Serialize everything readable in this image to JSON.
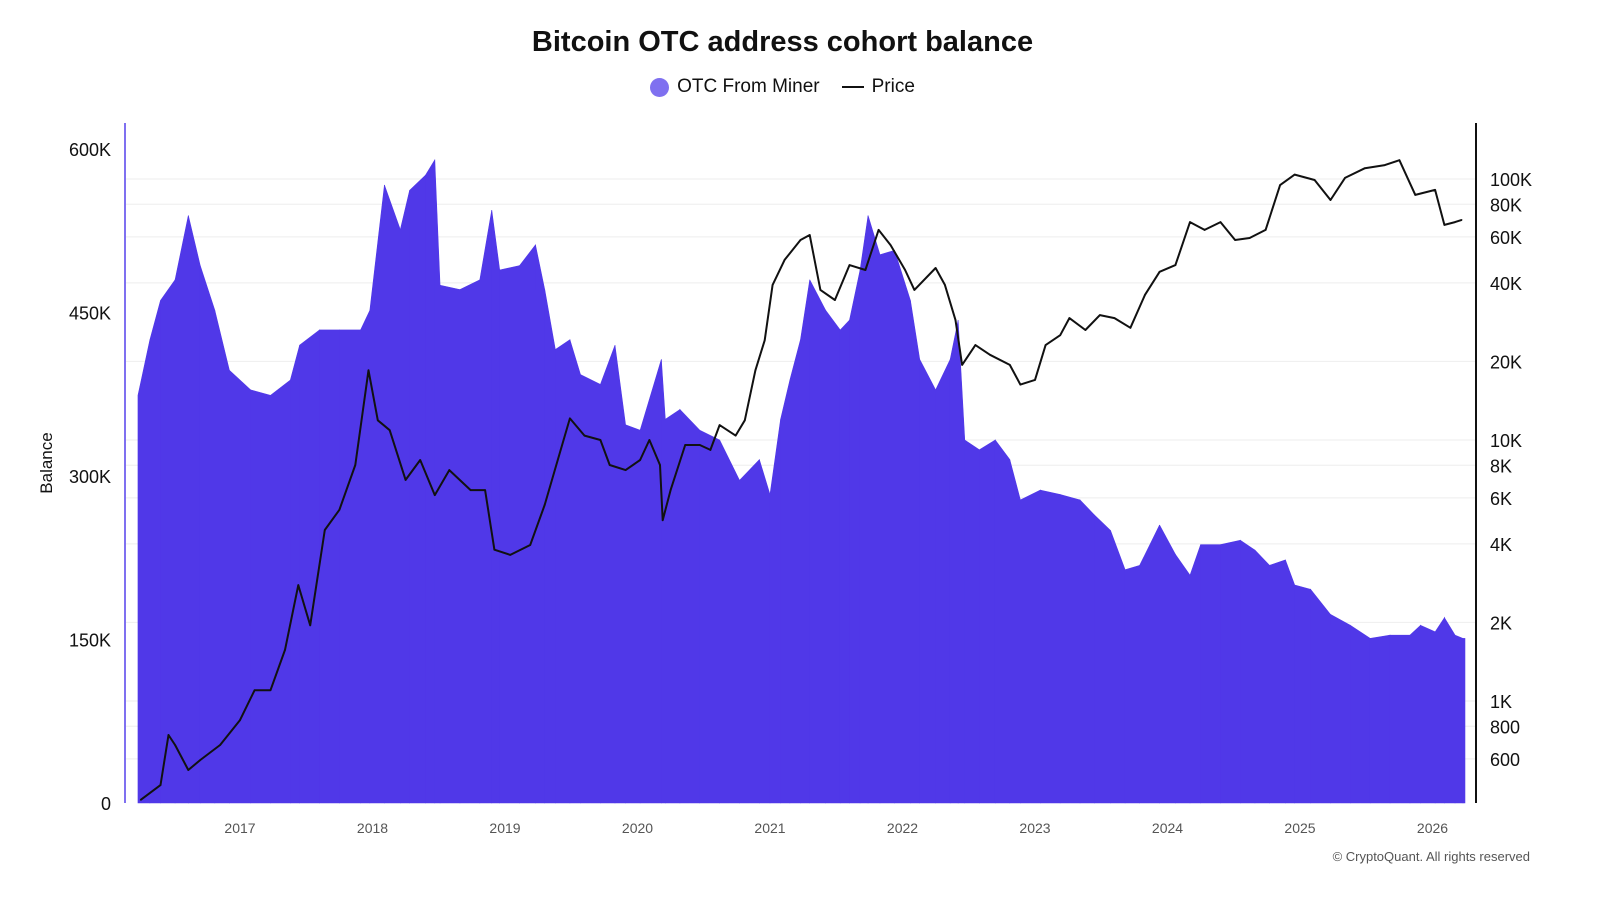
{
  "chart_data": {
    "type": "bar",
    "title": "Bitcoin OTC address cohort balance",
    "ylabel": "Balance",
    "ylabel_right": "",
    "xlabel": "",
    "legend_position": "top",
    "grid": true,
    "x_ticks": [
      "2017",
      "2018",
      "2019",
      "2020",
      "2021",
      "2022",
      "2023",
      "2024",
      "2025",
      "2026"
    ],
    "y_ticks_left": [
      "0",
      "150K",
      "300K",
      "450K",
      "600K"
    ],
    "y_ticks_left_values": [
      0,
      150000,
      300000,
      450000,
      600000
    ],
    "y_ticks_right": [
      "100K",
      "80K",
      "60K",
      "40K",
      "20K",
      "10K",
      "8K",
      "6K",
      "4K",
      "2K",
      "1K",
      "800",
      "600"
    ],
    "y_ticks_right_values": [
      100000,
      80000,
      60000,
      40000,
      20000,
      10000,
      8000,
      6000,
      4000,
      2000,
      1000,
      800,
      600
    ],
    "xlim": [
      2016.1,
      2026.3
    ],
    "ylim_left": [
      0,
      625000
    ],
    "ylim_right_log": [
      400,
      170000
    ],
    "series": [
      {
        "name": "OTC From Miner",
        "type": "bar",
        "axis": "left",
        "color": "#5038e8",
        "x": [
          2016.23,
          2016.32,
          2016.4,
          2016.51,
          2016.61,
          2016.7,
          2016.81,
          2016.92,
          2017.08,
          2017.23,
          2017.38,
          2017.45,
          2017.6,
          2017.75,
          2017.91,
          2017.98,
          2018.09,
          2018.21,
          2018.28,
          2018.4,
          2018.47,
          2018.51,
          2018.66,
          2018.81,
          2018.9,
          2018.96,
          2019.11,
          2019.23,
          2019.3,
          2019.38,
          2019.49,
          2019.57,
          2019.72,
          2019.83,
          2019.91,
          2020.02,
          2020.18,
          2020.21,
          2020.32,
          2020.47,
          2020.62,
          2020.77,
          2020.92,
          2021.0,
          2021.08,
          2021.15,
          2021.23,
          2021.3,
          2021.42,
          2021.53,
          2021.6,
          2021.68,
          2021.74,
          2021.83,
          2021.94,
          2022.06,
          2022.13,
          2022.25,
          2022.36,
          2022.42,
          2022.47,
          2022.58,
          2022.7,
          2022.81,
          2022.89,
          2023.04,
          2023.19,
          2023.34,
          2023.45,
          2023.57,
          2023.68,
          2023.79,
          2023.94,
          2024.06,
          2024.17,
          2024.25,
          2024.4,
          2024.55,
          2024.66,
          2024.77,
          2024.89,
          2024.96,
          2025.08,
          2025.23,
          2025.38,
          2025.53,
          2025.68,
          2025.83,
          2025.91,
          2026.02,
          2026.09,
          2026.17,
          2026.23
        ],
        "values": [
          374000,
          425000,
          461000,
          480000,
          539000,
          493000,
          452000,
          397000,
          379000,
          374000,
          388000,
          420000,
          434000,
          434000,
          434000,
          452000,
          567000,
          526000,
          562000,
          576000,
          590000,
          475000,
          471000,
          480000,
          544000,
          489000,
          493000,
          512000,
          471000,
          416000,
          425000,
          393000,
          384000,
          420000,
          347000,
          342000,
          407000,
          352000,
          361000,
          342000,
          333000,
          296000,
          315000,
          283000,
          352000,
          388000,
          425000,
          480000,
          452000,
          434000,
          443000,
          489000,
          539000,
          503000,
          507000,
          461000,
          407000,
          379000,
          407000,
          443000,
          333000,
          324000,
          333000,
          315000,
          278000,
          287000,
          283000,
          278000,
          264000,
          250000,
          214000,
          218000,
          255000,
          228000,
          209000,
          237000,
          237000,
          241000,
          232000,
          218000,
          223000,
          200000,
          196000,
          173000,
          163000,
          151000,
          154000,
          154000,
          163000,
          157000,
          170000,
          154000,
          151000
        ]
      },
      {
        "name": "Price",
        "type": "line",
        "axis": "right",
        "scale": "log",
        "color": "#111111",
        "x": [
          2016.25,
          2016.4,
          2016.46,
          2016.51,
          2016.61,
          2016.7,
          2016.85,
          2017.0,
          2017.11,
          2017.23,
          2017.34,
          2017.44,
          2017.53,
          2017.64,
          2017.75,
          2017.87,
          2017.97,
          2018.04,
          2018.13,
          2018.25,
          2018.36,
          2018.47,
          2018.58,
          2018.74,
          2018.85,
          2018.92,
          2019.04,
          2019.19,
          2019.3,
          2019.42,
          2019.49,
          2019.6,
          2019.72,
          2019.79,
          2019.91,
          2020.02,
          2020.09,
          2020.17,
          2020.19,
          2020.25,
          2020.36,
          2020.47,
          2020.55,
          2020.62,
          2020.74,
          2020.81,
          2020.89,
          2020.96,
          2021.02,
          2021.11,
          2021.23,
          2021.3,
          2021.38,
          2021.49,
          2021.6,
          2021.72,
          2021.82,
          2021.91,
          2022.02,
          2022.09,
          2022.25,
          2022.32,
          2022.4,
          2022.45,
          2022.55,
          2022.66,
          2022.81,
          2022.89,
          2023.0,
          2023.08,
          2023.19,
          2023.26,
          2023.38,
          2023.49,
          2023.6,
          2023.72,
          2023.83,
          2023.94,
          2024.06,
          2024.17,
          2024.28,
          2024.4,
          2024.51,
          2024.62,
          2024.74,
          2024.85,
          2024.96,
          2025.11,
          2025.23,
          2025.34,
          2025.49,
          2025.64,
          2025.75,
          2025.87,
          2026.02,
          2026.09,
          2026.17,
          2026.22
        ],
        "values": [
          418,
          476,
          741,
          678,
          544,
          594,
          678,
          845,
          1100,
          1100,
          1570,
          2780,
          1950,
          4520,
          5400,
          8020,
          18500,
          11900,
          10900,
          7030,
          8380,
          6150,
          7670,
          6430,
          6430,
          3800,
          3630,
          3960,
          5640,
          9160,
          12100,
          10400,
          10000,
          8020,
          7670,
          8380,
          10000,
          8020,
          4930,
          6430,
          9570,
          9570,
          9160,
          11400,
          10400,
          11900,
          18500,
          24100,
          39300,
          49000,
          58400,
          61000,
          37600,
          34400,
          46800,
          44800,
          63800,
          55800,
          44800,
          37600,
          45600,
          39300,
          28800,
          19400,
          23100,
          21200,
          19400,
          16300,
          17000,
          23100,
          25200,
          29300,
          26400,
          30100,
          29300,
          26900,
          36000,
          44100,
          46800,
          68400,
          63800,
          68400,
          58400,
          59400,
          63800,
          94800,
          104000,
          99100,
          83100,
          101000,
          110000,
          113000,
          118000,
          86900,
          90800,
          66700,
          68400,
          69700
        ]
      }
    ]
  },
  "footer": "© CryptoQuant. All rights reserved"
}
